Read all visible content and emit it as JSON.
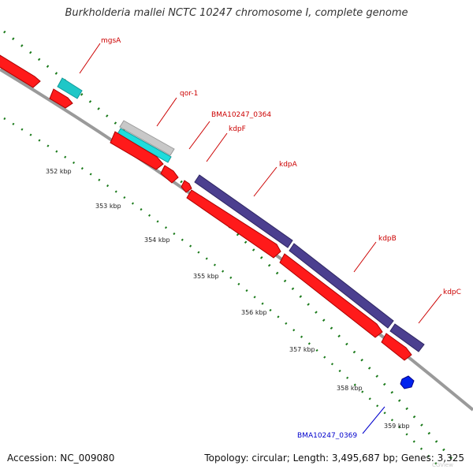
{
  "header": {
    "title": "Burkholderia mallei NCTC 10247 chromosome I, complete genome"
  },
  "footer": {
    "accession": "Accession: NC_009080",
    "summary": "Topology: circular; Length: 3,495,687 bp; Genes: 3,325"
  },
  "colors": {
    "backbone": "#8a8a8a",
    "forward_cds": "#ff0000",
    "rrna_or_other": "#1fc7c7",
    "gene_gray": "#c8c8c8",
    "blast_hit": "#4b3f8f",
    "label_red": "#cc0000",
    "label_blue": "#0000cc",
    "tick_green": "#1a7a1a"
  },
  "scale_ticks": [
    {
      "label": "352 kbp"
    },
    {
      "label": "353 kbp"
    },
    {
      "label": "354 kbp"
    },
    {
      "label": "355 kbp"
    },
    {
      "label": "356 kbp"
    },
    {
      "label": "357 kbp"
    },
    {
      "label": "358 kbp"
    },
    {
      "label": "359 kbp"
    }
  ],
  "gene_labels": [
    {
      "text": "mgsA",
      "color": "#cc0000"
    },
    {
      "text": "qor-1",
      "color": "#cc0000"
    },
    {
      "text": "BMA10247_0364",
      "color": "#cc0000"
    },
    {
      "text": "kdpF",
      "color": "#cc0000"
    },
    {
      "text": "kdpA",
      "color": "#cc0000"
    },
    {
      "text": "kdpB",
      "color": "#cc0000"
    },
    {
      "text": "kdpC",
      "color": "#cc0000"
    },
    {
      "text": "BMA10247_0369",
      "color": "#0000cc"
    }
  ],
  "watermark": "CGView"
}
